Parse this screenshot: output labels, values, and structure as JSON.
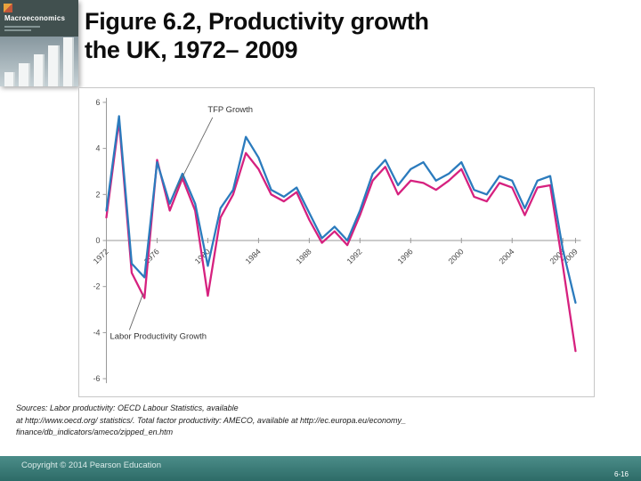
{
  "slide": {
    "title": {
      "line1": "Figure 6.2, Productivity growth",
      "line2": "the UK, 1972– 2009"
    },
    "book_cover": {
      "title": "Macroeconomics"
    },
    "sources": {
      "line1": "Sources: Labor productivity: OECD Labour Statistics, available",
      "line2": "at http://www.oecd.org/ statistics/. Total factor productivity: AMECO, available at http://ec.europa.eu/economy_",
      "line3": "finance/db_indicators/ameco/zipped_en.htm"
    },
    "footer": {
      "copyright": "Copyright © 2014 Pearson Education",
      "page_number": "6-16"
    }
  },
  "chart_data": {
    "type": "line",
    "title": "",
    "xlabel": "",
    "ylabel": "",
    "ylim": [
      -6,
      6
    ],
    "yticks": [
      6,
      4,
      2,
      0,
      -2,
      -4,
      -6
    ],
    "xticks": [
      1972,
      1976,
      1980,
      1984,
      1988,
      1992,
      1996,
      2000,
      2004,
      2008,
      2009
    ],
    "x": [
      1972,
      1973,
      1974,
      1975,
      1976,
      1977,
      1978,
      1979,
      1980,
      1981,
      1982,
      1983,
      1984,
      1985,
      1986,
      1987,
      1988,
      1989,
      1990,
      1991,
      1992,
      1993,
      1994,
      1995,
      1996,
      1997,
      1998,
      1999,
      2000,
      2001,
      2002,
      2003,
      2004,
      2005,
      2006,
      2007,
      2008,
      2009
    ],
    "series": [
      {
        "name": "TFP Growth",
        "color": "#2b7bbd",
        "values": [
          1.3,
          5.4,
          -1.0,
          -1.6,
          3.4,
          1.6,
          2.9,
          1.6,
          -1.1,
          1.4,
          2.2,
          4.5,
          3.6,
          2.2,
          1.9,
          2.3,
          1.2,
          0.1,
          0.6,
          0.0,
          1.3,
          2.9,
          3.5,
          2.4,
          3.1,
          3.4,
          2.6,
          2.9,
          3.4,
          2.2,
          2.0,
          2.8,
          2.6,
          1.4,
          2.6,
          2.8,
          -0.4,
          -2.7
        ]
      },
      {
        "name": "Labor Productivity Growth",
        "color": "#d6217f",
        "values": [
          1.0,
          5.2,
          -1.4,
          -2.5,
          3.5,
          1.3,
          2.7,
          1.3,
          -2.4,
          1.0,
          2.0,
          3.8,
          3.1,
          2.0,
          1.7,
          2.1,
          0.9,
          -0.1,
          0.4,
          -0.2,
          1.1,
          2.6,
          3.2,
          2.0,
          2.6,
          2.5,
          2.2,
          2.6,
          3.1,
          1.9,
          1.7,
          2.5,
          2.3,
          1.1,
          2.3,
          2.4,
          -1.1,
          -4.8
        ]
      }
    ],
    "annotations": [
      {
        "text": "TFP Growth",
        "target_year": 1977.4,
        "target_value": 2.1
      },
      {
        "text": "Labor Productivity Growth",
        "target_year": 1974.9,
        "target_value": -2.3
      }
    ],
    "grid": "off",
    "legend": "none (annotated labels with leader lines)"
  }
}
